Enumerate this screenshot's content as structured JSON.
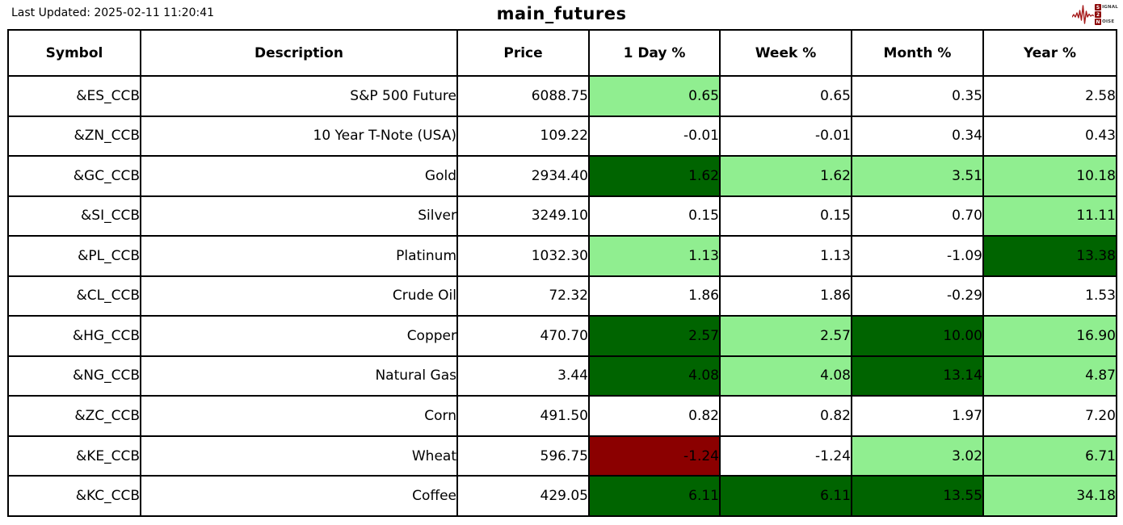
{
  "header": {
    "last_updated": "Last Updated: 2025-02-11 11:20:41",
    "title": "main_futures"
  },
  "logo": {
    "s_box": "S",
    "s_rest": "IGNAL",
    "two_box": "2",
    "n_box": "N",
    "n_rest": "OISE",
    "waveform_color": "#A61C1C",
    "box_color": "#8B0000"
  },
  "colors": {
    "up": "#90EE90",
    "up_strong": "#006400",
    "down_strong": "#8B0000",
    "none": "#FFFFFF"
  },
  "table": {
    "columns": [
      "Symbol",
      "Description",
      "Price",
      "1 Day %",
      "Week %",
      "Month %",
      "Year %"
    ],
    "rows": [
      {
        "symbol": "&ES_CCB",
        "description": "S&P 500 Future",
        "price": "6088.75",
        "pcts": [
          {
            "value": "0.65",
            "bg": "up"
          },
          {
            "value": "0.65",
            "bg": "none"
          },
          {
            "value": "0.35",
            "bg": "none"
          },
          {
            "value": "2.58",
            "bg": "none"
          }
        ]
      },
      {
        "symbol": "&ZN_CCB",
        "description": "10 Year T-Note (USA)",
        "price": "109.22",
        "pcts": [
          {
            "value": "-0.01",
            "bg": "none"
          },
          {
            "value": "-0.01",
            "bg": "none"
          },
          {
            "value": "0.34",
            "bg": "none"
          },
          {
            "value": "0.43",
            "bg": "none"
          }
        ]
      },
      {
        "symbol": "&GC_CCB",
        "description": "Gold",
        "price": "2934.40",
        "pcts": [
          {
            "value": "1.62",
            "bg": "up_strong"
          },
          {
            "value": "1.62",
            "bg": "up"
          },
          {
            "value": "3.51",
            "bg": "up"
          },
          {
            "value": "10.18",
            "bg": "up"
          }
        ]
      },
      {
        "symbol": "&SI_CCB",
        "description": "Silver",
        "price": "3249.10",
        "pcts": [
          {
            "value": "0.15",
            "bg": "none"
          },
          {
            "value": "0.15",
            "bg": "none"
          },
          {
            "value": "0.70",
            "bg": "none"
          },
          {
            "value": "11.11",
            "bg": "up"
          }
        ]
      },
      {
        "symbol": "&PL_CCB",
        "description": "Platinum",
        "price": "1032.30",
        "pcts": [
          {
            "value": "1.13",
            "bg": "up"
          },
          {
            "value": "1.13",
            "bg": "none"
          },
          {
            "value": "-1.09",
            "bg": "none"
          },
          {
            "value": "13.38",
            "bg": "up_strong"
          }
        ]
      },
      {
        "symbol": "&CL_CCB",
        "description": "Crude Oil",
        "price": "72.32",
        "pcts": [
          {
            "value": "1.86",
            "bg": "none"
          },
          {
            "value": "1.86",
            "bg": "none"
          },
          {
            "value": "-0.29",
            "bg": "none"
          },
          {
            "value": "1.53",
            "bg": "none"
          }
        ]
      },
      {
        "symbol": "&HG_CCB",
        "description": "Copper",
        "price": "470.70",
        "pcts": [
          {
            "value": "2.57",
            "bg": "up_strong"
          },
          {
            "value": "2.57",
            "bg": "up"
          },
          {
            "value": "10.00",
            "bg": "up_strong"
          },
          {
            "value": "16.90",
            "bg": "up"
          }
        ]
      },
      {
        "symbol": "&NG_CCB",
        "description": "Natural Gas",
        "price": "3.44",
        "pcts": [
          {
            "value": "4.08",
            "bg": "up_strong"
          },
          {
            "value": "4.08",
            "bg": "up"
          },
          {
            "value": "13.14",
            "bg": "up_strong"
          },
          {
            "value": "4.87",
            "bg": "up"
          }
        ]
      },
      {
        "symbol": "&ZC_CCB",
        "description": "Corn",
        "price": "491.50",
        "pcts": [
          {
            "value": "0.82",
            "bg": "none"
          },
          {
            "value": "0.82",
            "bg": "none"
          },
          {
            "value": "1.97",
            "bg": "none"
          },
          {
            "value": "7.20",
            "bg": "none"
          }
        ]
      },
      {
        "symbol": "&KE_CCB",
        "description": "Wheat",
        "price": "596.75",
        "pcts": [
          {
            "value": "-1.24",
            "bg": "down_strong"
          },
          {
            "value": "-1.24",
            "bg": "none"
          },
          {
            "value": "3.02",
            "bg": "up"
          },
          {
            "value": "6.71",
            "bg": "up"
          }
        ]
      },
      {
        "symbol": "&KC_CCB",
        "description": "Coffee",
        "price": "429.05",
        "pcts": [
          {
            "value": "6.11",
            "bg": "up_strong"
          },
          {
            "value": "6.11",
            "bg": "up_strong"
          },
          {
            "value": "13.55",
            "bg": "up_strong"
          },
          {
            "value": "34.18",
            "bg": "up"
          }
        ]
      }
    ]
  },
  "chart_data": {
    "type": "table",
    "title": "main_futures",
    "columns": [
      "Symbol",
      "Description",
      "Price",
      "1 Day %",
      "Week %",
      "Month %",
      "Year %"
    ],
    "rows": [
      [
        "&ES_CCB",
        "S&P 500 Future",
        6088.75,
        0.65,
        0.65,
        0.35,
        2.58
      ],
      [
        "&ZN_CCB",
        "10 Year T-Note (USA)",
        109.22,
        -0.01,
        -0.01,
        0.34,
        0.43
      ],
      [
        "&GC_CCB",
        "Gold",
        2934.4,
        1.62,
        1.62,
        3.51,
        10.18
      ],
      [
        "&SI_CCB",
        "Silver",
        3249.1,
        0.15,
        0.15,
        0.7,
        11.11
      ],
      [
        "&PL_CCB",
        "Platinum",
        1032.3,
        1.13,
        1.13,
        -1.09,
        13.38
      ],
      [
        "&CL_CCB",
        "Crude Oil",
        72.32,
        1.86,
        1.86,
        -0.29,
        1.53
      ],
      [
        "&HG_CCB",
        "Copper",
        470.7,
        2.57,
        2.57,
        10.0,
        16.9
      ],
      [
        "&NG_CCB",
        "Natural Gas",
        3.44,
        4.08,
        4.08,
        13.14,
        4.87
      ],
      [
        "&ZC_CCB",
        "Corn",
        491.5,
        0.82,
        0.82,
        1.97,
        7.2
      ],
      [
        "&KE_CCB",
        "Wheat",
        596.75,
        -1.24,
        -1.24,
        3.02,
        6.71
      ],
      [
        "&KC_CCB",
        "Coffee",
        429.05,
        6.11,
        6.11,
        13.55,
        34.18
      ]
    ]
  }
}
